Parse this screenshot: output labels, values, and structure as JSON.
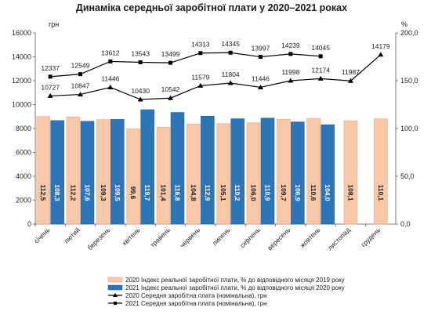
{
  "chart_data": {
    "type": "bar",
    "title": "Динаміка середньої заробітної плати у 2020–2021 роках",
    "left_axis_unit": "грн",
    "right_axis_unit": "%",
    "left_ylim": [
      0,
      16000
    ],
    "left_ticks": [
      "0",
      "2000",
      "4000",
      "6000",
      "8000",
      "10000",
      "12000",
      "14000",
      "16000"
    ],
    "right_ylim": [
      0,
      200
    ],
    "right_ticks": [
      "0,0",
      "50,0",
      "100,0",
      "150,0",
      "200,0"
    ],
    "grid": false,
    "legend_position": "bottom",
    "categories": [
      "січень",
      "лютий",
      "березень",
      "квітень",
      "травень",
      "червень",
      "липень",
      "серпень",
      "вересень",
      "жовтень",
      "листопад",
      "грудень"
    ],
    "series": [
      {
        "name": "2020 Індекс реальної заробітної плати, % до відповідного місяця 2019 року",
        "type": "bar",
        "axis": "right",
        "color": "#f8c8a8",
        "values": [
          112.5,
          112.2,
          109.3,
          99.6,
          101.4,
          104.8,
          105.1,
          106.0,
          109.7,
          110.6,
          108.1,
          110.1
        ],
        "labels": [
          "112,5",
          "112,2",
          "109,3",
          "99,6",
          "101,4",
          "104,8",
          "105,1",
          "106,0",
          "109,7",
          "110,6",
          "108,1",
          "110,1"
        ]
      },
      {
        "name": "2021 Індекс реальної заробітної плати, % до відповідного місяця 2020 року",
        "type": "bar",
        "axis": "right",
        "color": "#2e75b6",
        "values": [
          108.3,
          107.6,
          109.5,
          119.7,
          116.8,
          112.9,
          110.2,
          110.9,
          106.9,
          104.0,
          null,
          null
        ],
        "labels": [
          "108,3",
          "107,6",
          "109,5",
          "119,7",
          "116,8",
          "112,9",
          "110,2",
          "110,9",
          "106,9",
          "104,0",
          "",
          ""
        ]
      },
      {
        "name": "2020 Середня заробітна плата (номінальна), грн",
        "type": "line",
        "marker": "triangle",
        "axis": "left",
        "color": "#000000",
        "values": [
          10727,
          10847,
          11446,
          10430,
          10542,
          11579,
          11804,
          11446,
          11998,
          12174,
          11987,
          14179
        ],
        "labels": [
          "10727",
          "10847",
          "11446",
          "10430",
          "10542",
          "11579",
          "11804",
          "11446",
          "11998",
          "12174",
          "11987",
          "14179"
        ]
      },
      {
        "name": "2021 Середня заробітна плата (номінальна), грн",
        "type": "line",
        "marker": "square",
        "axis": "left",
        "color": "#000000",
        "values": [
          12337,
          12549,
          13612,
          13543,
          13499,
          14313,
          14345,
          13997,
          14239,
          14045,
          null,
          null
        ],
        "labels": [
          "12337",
          "12549",
          "13612",
          "13543",
          "13499",
          "14313",
          "14345",
          "13997",
          "14239",
          "14045",
          "",
          ""
        ]
      }
    ]
  }
}
